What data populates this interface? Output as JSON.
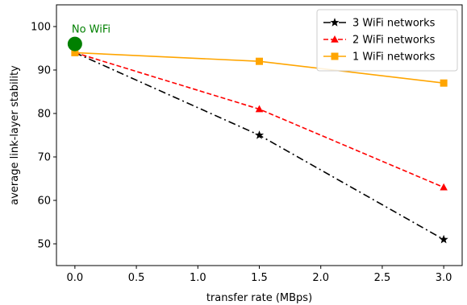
{
  "chart_data": {
    "type": "line",
    "title": "",
    "xlabel": "transfer rate (MBps)",
    "ylabel": "average link-layer stability",
    "xlim": [
      -0.15,
      3.15
    ],
    "ylim": [
      45,
      105
    ],
    "xticks": [
      0.0,
      0.5,
      1.0,
      1.5,
      2.0,
      2.5,
      3.0
    ],
    "xtick_labels": [
      "0.0",
      "0.5",
      "1.0",
      "1.5",
      "2.0",
      "2.5",
      "3.0"
    ],
    "yticks": [
      50,
      60,
      70,
      80,
      90,
      100
    ],
    "ytick_labels": [
      "50",
      "60",
      "70",
      "80",
      "90",
      "100"
    ],
    "grid": false,
    "legend_position": "top-right",
    "series": [
      {
        "name": "3 WiFi networks",
        "x": [
          0.0,
          1.5,
          3.0
        ],
        "y": [
          94,
          75,
          51
        ],
        "color": "#000000",
        "line_style": "dash-dot",
        "marker": "star"
      },
      {
        "name": "2 WiFi networks",
        "x": [
          0.0,
          1.5,
          3.0
        ],
        "y": [
          94,
          81,
          63
        ],
        "color": "#ff0000",
        "line_style": "dashed",
        "marker": "triangle"
      },
      {
        "name": "1 WiFi networks",
        "x": [
          0.0,
          1.5,
          3.0
        ],
        "y": [
          94,
          92,
          87
        ],
        "color": "#ffa500",
        "line_style": "solid",
        "marker": "square"
      }
    ],
    "annotations": [
      {
        "text": "No WiFi",
        "x": 0.0,
        "y": 96,
        "color": "#008000",
        "marker": "circle"
      }
    ]
  }
}
